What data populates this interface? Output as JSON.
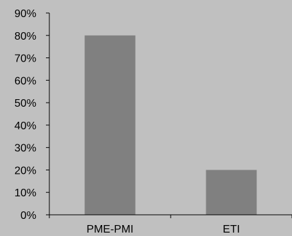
{
  "chart_data": {
    "type": "bar",
    "categories": [
      "PME-PMI",
      "ETI"
    ],
    "values": [
      80,
      20
    ],
    "value_unit": "%",
    "y_tick_labels": [
      "0%",
      "10%",
      "20%",
      "30%",
      "40%",
      "50%",
      "60%",
      "70%",
      "80%",
      "90%"
    ],
    "ylim": [
      0,
      90
    ],
    "grid": false,
    "legend": "none",
    "bar_color": "#808080",
    "background_color": "#c0c0c0",
    "axis_color": "#000000",
    "text_color": "#000000"
  }
}
